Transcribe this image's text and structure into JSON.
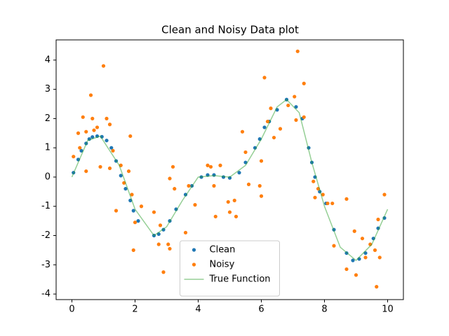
{
  "chart_data": {
    "type": "scatter",
    "title": "Clean and Noisy Data plot",
    "xlim": [
      -0.5,
      10.5
    ],
    "ylim": [
      -4.19,
      4.69
    ],
    "xticks": [
      0,
      2,
      4,
      6,
      8,
      10
    ],
    "yticks": [
      -4,
      -3,
      -2,
      -1,
      0,
      1,
      2,
      3,
      4
    ],
    "legend": "lower center",
    "series": [
      {
        "name": "Clean",
        "color": "#1f77b4",
        "style": "points",
        "x": [
          0.05,
          0.2,
          0.3,
          0.45,
          0.55,
          0.65,
          0.8,
          0.95,
          1.1,
          1.25,
          1.4,
          1.55,
          1.7,
          1.85,
          1.95,
          2.1,
          2.6,
          2.75,
          2.9,
          3.1,
          3.3,
          3.6,
          3.8,
          4.1,
          4.3,
          4.5,
          4.8,
          5.0,
          5.3,
          5.5,
          5.8,
          5.95,
          6.1,
          6.25,
          6.5,
          6.8,
          7.1,
          7.3,
          7.5,
          7.6,
          7.7,
          7.85,
          8.05,
          8.3,
          8.7,
          8.9,
          9.1,
          9.3,
          9.55,
          9.7,
          9.9
        ],
        "values": [
          0.15,
          0.6,
          0.9,
          1.15,
          1.3,
          1.37,
          1.4,
          1.38,
          1.25,
          1.0,
          0.55,
          0.05,
          -0.4,
          -0.8,
          -1.15,
          -1.5,
          -2.0,
          -1.95,
          -1.8,
          -1.5,
          -1.1,
          -0.6,
          -0.3,
          0.0,
          0.07,
          0.07,
          0.0,
          -0.03,
          0.15,
          0.5,
          1.0,
          1.3,
          1.7,
          1.9,
          2.3,
          2.65,
          2.4,
          2.0,
          1.0,
          0.5,
          0.0,
          -0.5,
          -0.9,
          -1.8,
          -2.6,
          -2.85,
          -2.8,
          -2.6,
          -2.1,
          -1.75,
          -1.4
        ]
      },
      {
        "name": "Noisy",
        "color": "#ff7f0e",
        "style": "points",
        "x": [
          0.05,
          0.2,
          0.25,
          0.35,
          0.45,
          0.45,
          0.6,
          0.65,
          0.7,
          0.8,
          0.9,
          1.0,
          1.1,
          1.2,
          1.2,
          1.3,
          1.4,
          1.55,
          1.65,
          1.8,
          1.85,
          1.9,
          1.95,
          2.0,
          2.2,
          2.6,
          2.75,
          2.8,
          2.9,
          3.05,
          3.1,
          3.1,
          3.2,
          3.25,
          3.6,
          3.7,
          3.9,
          4.3,
          4.4,
          4.5,
          4.55,
          4.7,
          4.95,
          5.0,
          5.15,
          5.2,
          5.4,
          5.5,
          5.6,
          5.95,
          6.0,
          6.0,
          6.1,
          6.2,
          6.3,
          6.4,
          6.6,
          6.85,
          7.05,
          7.15,
          7.1,
          7.35,
          7.35,
          7.65,
          7.7,
          7.8,
          7.95,
          8.1,
          8.25,
          8.3,
          8.7,
          8.7,
          8.95,
          9.0,
          9.2,
          9.3,
          9.45,
          9.6,
          9.65,
          9.7,
          9.75,
          9.9
        ],
        "values": [
          0.7,
          1.5,
          1.0,
          2.05,
          1.55,
          0.2,
          2.8,
          2.0,
          1.6,
          1.7,
          0.35,
          3.8,
          2.0,
          1.8,
          0.3,
          0.9,
          -1.15,
          0.4,
          -0.2,
          0.2,
          1.4,
          -0.6,
          -2.5,
          -1.55,
          -1.0,
          -1.2,
          -2.3,
          -1.65,
          -3.25,
          -2.3,
          -2.45,
          -0.05,
          0.35,
          -0.4,
          -1.9,
          -0.3,
          -0.95,
          0.4,
          0.35,
          -0.3,
          -1.35,
          0.4,
          -0.85,
          -1.2,
          -0.8,
          -1.35,
          1.55,
          0.85,
          -0.25,
          -0.3,
          -0.65,
          0.55,
          3.4,
          1.9,
          2.35,
          1.35,
          1.65,
          2.45,
          2.75,
          4.3,
          1.95,
          3.2,
          2.05,
          -0.15,
          -0.7,
          -0.4,
          -0.6,
          -0.9,
          -0.9,
          -2.35,
          -0.75,
          -3.15,
          -1.85,
          -3.35,
          -2.1,
          -2.75,
          -2.3,
          -2.5,
          -3.75,
          -1.45,
          -2.75,
          -0.6
        ]
      },
      {
        "name": "True Function",
        "color": "#2ca02c",
        "style": "line",
        "x": [
          0,
          0.5,
          0.9,
          1.5,
          2,
          2.6,
          3,
          3.5,
          4,
          4.5,
          5,
          5.5,
          6,
          6.5,
          6.8,
          7.2,
          7.6,
          8,
          8.5,
          9,
          9.5,
          10
        ],
        "values": [
          0,
          1.25,
          1.4,
          0.4,
          -1.1,
          -2.0,
          -1.7,
          -0.8,
          0,
          0.05,
          0,
          0.4,
          1.3,
          2.4,
          2.65,
          2.2,
          0.5,
          -1.0,
          -2.4,
          -2.85,
          -2.3,
          -1.1
        ]
      }
    ]
  }
}
